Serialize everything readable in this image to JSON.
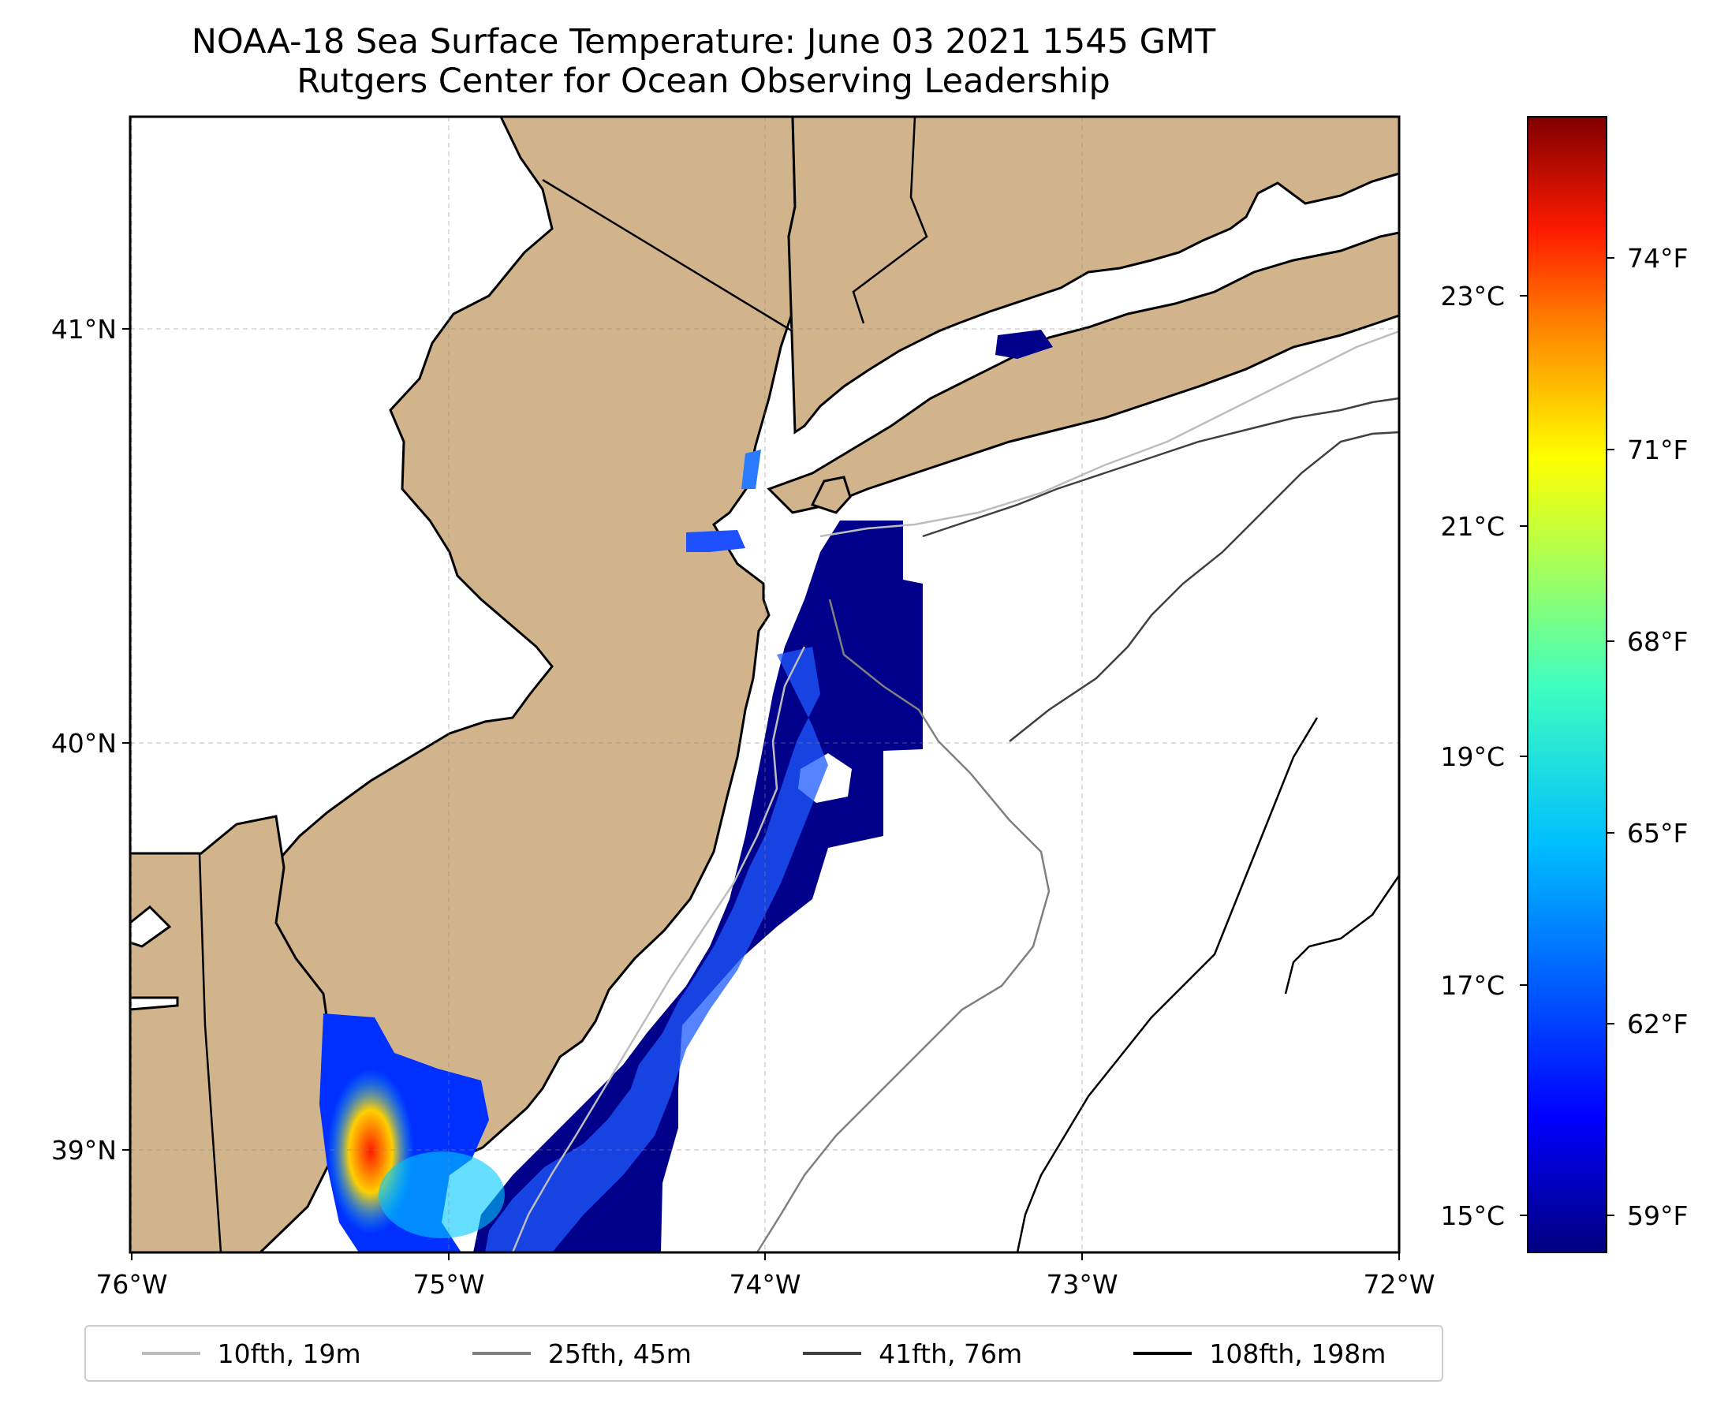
{
  "title": {
    "line1": "NOAA-18 Sea Surface Temperature: June 03 2021 1545 GMT",
    "line2": "Rutgers Center for Ocean Observing Leadership"
  },
  "axes": {
    "lat_ticks": [
      "41°N",
      "40°N",
      "39°N"
    ],
    "lon_ticks": [
      "76°W",
      "75°W",
      "74°W",
      "73°W",
      "72°W"
    ]
  },
  "colorbar": {
    "celsius_ticks": [
      "23°C",
      "21°C",
      "19°C",
      "17°C",
      "15°C"
    ],
    "fahrenheit_ticks": [
      "74°F",
      "71°F",
      "68°F",
      "65°F",
      "62°F",
      "59°F"
    ],
    "colormap": [
      "#00007f",
      "#0000ff",
      "#007fff",
      "#00ffff",
      "#7fff7f",
      "#ffff00",
      "#ff7f00",
      "#ff0000",
      "#7f0000"
    ]
  },
  "legend": [
    {
      "label": "10fth, 19m",
      "color": "#bdbdbd"
    },
    {
      "label": "25fth, 45m",
      "color": "#808080"
    },
    {
      "label": "41fth, 76m",
      "color": "#404040"
    },
    {
      "label": "108fth, 198m",
      "color": "#000000"
    }
  ],
  "colors": {
    "land": "#d2b48c",
    "ocean": "#ffffff",
    "sst_cold": "#00008b",
    "sst_mid": "#1e90ff",
    "sst_warm": "#ff2a00"
  }
}
